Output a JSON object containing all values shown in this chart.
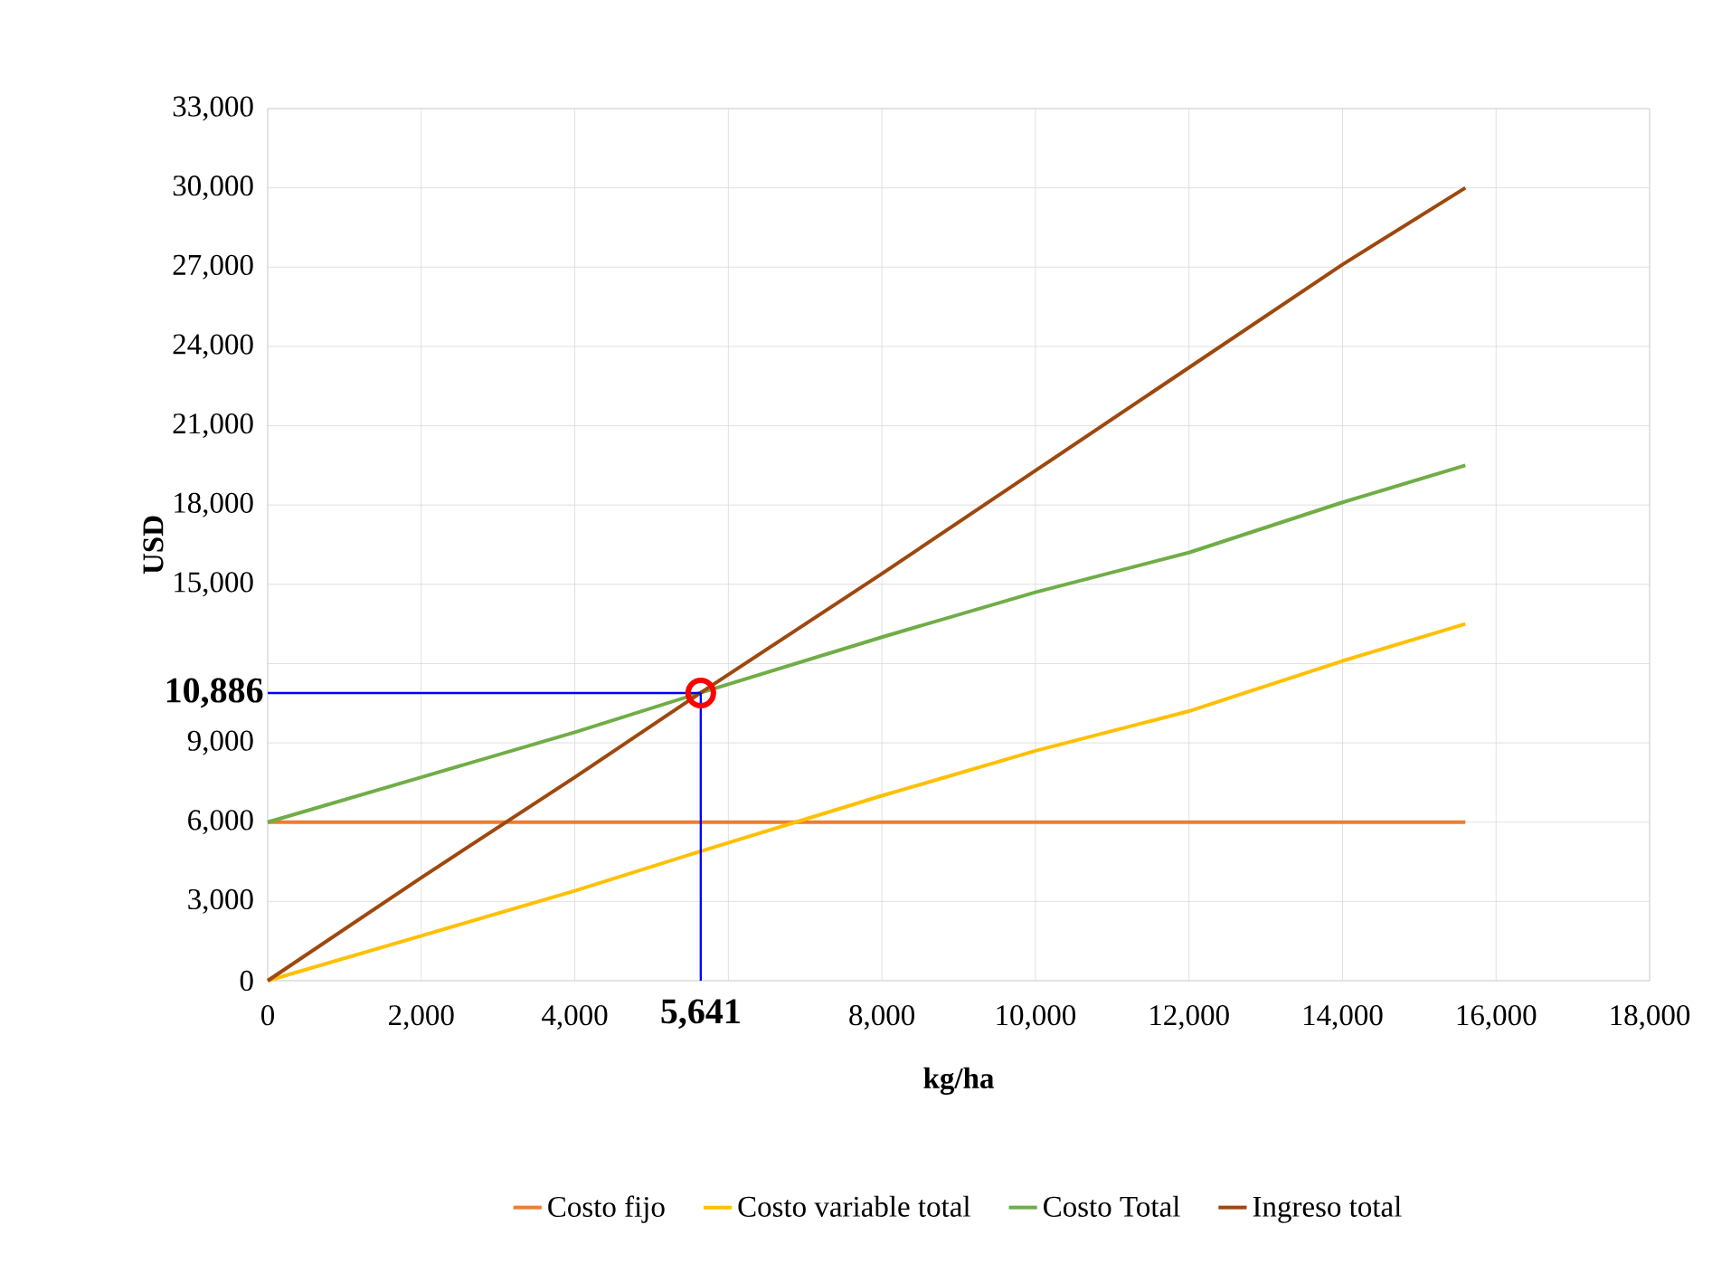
{
  "chart_data": {
    "type": "line",
    "xlabel": "kg/ha",
    "ylabel": "USD",
    "xlim": [
      0,
      18000
    ],
    "ylim": [
      0,
      33000
    ],
    "xticks": [
      0,
      {
        "value": 2000,
        "label": "2,000"
      },
      {
        "value": 4000,
        "label": "4,000"
      },
      {
        "value": 6000,
        "label": null
      },
      {
        "value": 8000,
        "label": "8,000"
      },
      {
        "value": 10000,
        "label": "10,000"
      },
      {
        "value": 12000,
        "label": "12,000"
      },
      {
        "value": 14000,
        "label": "14,000"
      },
      {
        "value": 16000,
        "label": "16,000"
      },
      {
        "value": 18000,
        "label": "18,000"
      }
    ],
    "yticks": [
      0,
      {
        "value": 3000,
        "label": "3,000"
      },
      {
        "value": 6000,
        "label": "6,000"
      },
      {
        "value": 9000,
        "label": "9,000"
      },
      {
        "value": 12000,
        "label": null
      },
      {
        "value": 15000,
        "label": "15,000"
      },
      {
        "value": 18000,
        "label": "18,000"
      },
      {
        "value": 21000,
        "label": "21,000"
      },
      {
        "value": 24000,
        "label": "24,000"
      },
      {
        "value": 27000,
        "label": "27,000"
      },
      {
        "value": 30000,
        "label": "30,000"
      },
      {
        "value": 33000,
        "label": "33,000"
      }
    ],
    "x": [
      0,
      2000,
      4000,
      5641,
      8000,
      10000,
      12000,
      14000,
      15600
    ],
    "series": [
      {
        "name": "Costo fijo",
        "color": "#ed7d31",
        "values": [
          6000,
          6000,
          6000,
          6000,
          6000,
          6000,
          6000,
          6000,
          6000
        ]
      },
      {
        "name": "Costo variable total",
        "color": "#ffc000",
        "values": [
          0,
          1700,
          3400,
          4900,
          7000,
          8700,
          10200,
          12100,
          13500
        ]
      },
      {
        "name": "Costo Total",
        "color": "#70ad47",
        "values": [
          6000,
          7700,
          9400,
          10900,
          13000,
          14700,
          16200,
          18100,
          19500
        ]
      },
      {
        "name": "Ingreso total",
        "color": "#9e480e",
        "values": [
          0,
          3900,
          7700,
          10900,
          15400,
          19300,
          23200,
          27100,
          30000
        ]
      },
      {
        "type": "scatter",
        "marker": "circle",
        "color": "#ff0000",
        "x": [
          5641
        ],
        "values": [
          10886
        ]
      }
    ],
    "ref_lines": [
      {
        "axis": "y",
        "value": 10886,
        "label": "10,886",
        "color": "#0000ff"
      },
      {
        "axis": "x",
        "value": 5641,
        "label": "5,641",
        "color": "#0000ff"
      }
    ],
    "grid": true,
    "legend": "bottom",
    "marker": "none",
    "line_style": "solid"
  }
}
